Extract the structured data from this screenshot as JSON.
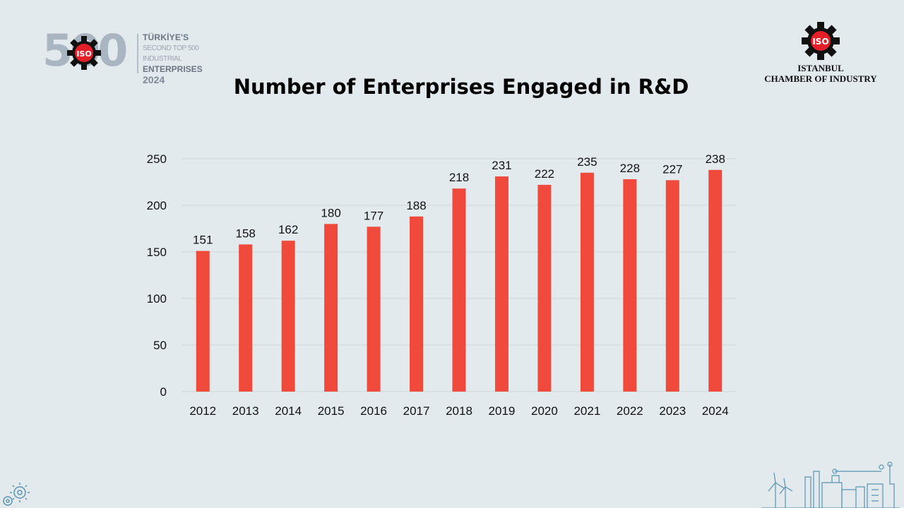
{
  "logo": {
    "number": "500",
    "emblem": "ISO",
    "line1": "TÜRKİYE'S",
    "line2": "SECOND TOP 500 INDUSTRIAL",
    "line3": "ENTERPRISES",
    "line4": "2024"
  },
  "chamber": {
    "emblem": "ISO",
    "name_line1": "ISTANBUL",
    "name_line2": "CHAMBER OF INDUSTRY"
  },
  "colors": {
    "bar": "#ef4a3c",
    "background": "#e2eaed",
    "grid": "#ced6da",
    "logo_red": "#e3202a"
  },
  "chart_data": {
    "type": "bar",
    "title": "Number of Enterprises Engaged in R&D",
    "xlabel": "",
    "ylabel": "",
    "categories": [
      "2012",
      "2013",
      "2014",
      "2015",
      "2016",
      "2017",
      "2018",
      "2019",
      "2020",
      "2021",
      "2022",
      "2023",
      "2024"
    ],
    "values": [
      151,
      158,
      162,
      180,
      177,
      188,
      218,
      231,
      222,
      235,
      228,
      227,
      238
    ],
    "ylim": [
      0,
      250
    ],
    "yticks": [
      0,
      50,
      100,
      150,
      200,
      250
    ],
    "grid": true,
    "data_labels": true,
    "legend": "none"
  }
}
